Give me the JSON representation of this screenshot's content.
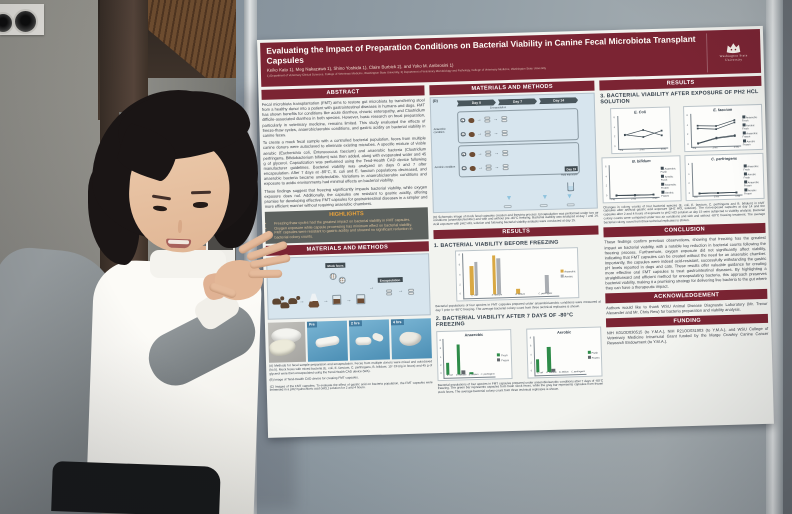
{
  "colors": {
    "poster_maroon": "#7b2433",
    "highlight_amber": "#e9a23b",
    "bar_anaerobic_yellow": "#d9a843",
    "bar_aerobic_gray": "#a9adb2",
    "bar_fresh_green": "#2e8c49",
    "bar_frozen_gray": "#62676b",
    "board_gray": "#929ea6"
  },
  "icons": {
    "right_arrow": "→",
    "down_arrow": "▼",
    "wsu_cougar": "cougar-head-logo"
  },
  "poster": {
    "title": "Evaluating the Impact of Preparation Conditions on Bacterial Viability in Canine Fecal Microbiota Transplant Capsules",
    "authors": "Keiko Kato 1), Meg Nakazawa 1), Shino Yoshida 1), Claire Burbick 2), and Yoko M. Ambrosini 1)",
    "affiliations": "1) Department of Veterinary Clinical Sciences, College of Veterinary Medicine, Washington State University, 2) Department of Veterinary Microbiology and Pathology, College of Veterinary Medicine, Washington State University",
    "logo": {
      "line1": "Washington State",
      "line2": "University"
    },
    "sections": {
      "abstract": {
        "title": "ABSTRACT",
        "paragraphs": [
          "Fecal microbiota transplantation (FMT) aims to restore gut microbiota by transferring stool from a healthy donor into a patient with gastrointestinal diseases in humans and dogs. FMT has shown benefits for conditions like acute diarrhea, chronic enteropathy, and Clostridium difficile-associated diarrhea in both species. However, basic research on fecal preparation, particularly in veterinary medicine, remains limited. This study evaluated the effects of freeze-thaw cycles, anaerobic/aerobic conditions, and gastric acidity on bacterial viability in canine feces.",
          "To create a mock fecal sample with a controlled bacterial population, feces from multiple canine donors were autoclaved to eliminate existing microbes. A specific mixture of viable aerobic (Escherichia coli, Enterococcus faecium) and anaerobic bacteria (Clostridium perfringens, Bifidobacterium bifidum) was then added, along with evaporated water and 45 g of glycerol. Capsulization was performed using the Tend-Health CAD device following manufacturer guidelines. Bacterial viability was analyzed on days 0 and 7 after encapsulation. After 7 days at -80°C, E. coli and E. faecium populations decreased, and anaerobic bacteria became undetectable. Variations in anaerobic/aerobic conditions and exposure to acidic environments had minimal effects on bacterial viability.",
          "These findings suggest that freezing significantly impacts bacterial viability, while oxygen exposure does not. Additionally, the capsules are resistant to gastric acidity, offering promise for developing effective FMT capsules for gastrointestinal diseases in a simpler and more efficient manner without requiring anaerobic chambers."
        ]
      },
      "highlights": {
        "title": "HIGHLIGHTS",
        "bullets": [
          "Freezing thaw cycles had the greatest impact on bacterial viability in FMT capsules.",
          "Oxygen exposure while capsule processing has minimum effect on bacterial viability.",
          "FMT capsules were resistant to gastric acidity and showed no significant reduction in bacterial colony counts."
        ]
      },
      "methods": {
        "title": "MATERIALS AND METHODS",
        "diagram_labels": {
          "mock_feces": "Mock feces",
          "encapsulation": "Encapsulation"
        },
        "photo_labels": [
          "Pre",
          "2 hrs",
          "4 hrs"
        ],
        "captions": [
          "(A) Methods for fecal sample preparation and encapsulation. Feces from multiple donors were mixed and autoclaved (N=5). Mock feces with mixed bacteria (E. coli, E. faecium, C. perfringens, B. bifidum; 10⁷ CFU/g in feces) and 45 g of glycerol were then encapsulated using the Tend-Health CAD device (WA).",
          "(B) Image of Tend-Health CAD device for creating FMT capsules.",
          "(C) Images of the FMT capsules. To evaluate the effect of gastric acid on bacteria population, the FMT capsules were immersed in a pH2 hydrochloric acid (HCL) solution for 2 and 4 hours."
        ],
        "timeline": {
          "tag": "(D)",
          "days": [
            "Day 0",
            "Day 7",
            "Day 14"
          ],
          "encapsulation": "Encapsulation",
          "anaerobic": "Anaerobic condition",
          "aerobic": "Aerobic condition",
          "row_numbers": [
            "1",
            "2",
            "3",
            "4"
          ],
          "day15": "Day 15",
          "acid": "Acid exposure",
          "caption": "(D) Schematic image of mock fecal capsules creation and freezing process. Encapsulation was performed under two air conditions (anaerobic/aerobic) and with and without pre -80°C freezing. Bacterial viability was analyzed at day 7 and 14. Acid exposure with pH2 HCL solution and following bacterial viability analysis were conducted at day 15."
        }
      },
      "results": {
        "title": "RESULTS",
        "r1": {
          "heading": "1. BACTERIAL VIABILITY BEFORE FREEZING",
          "caption": "Bacterial populations of four species in FMT capsules prepared under anaerobic/aerobic conditions were measured at day 7 prior to -80°C freezing. The average bacterial colony count from three technical replicates is shown."
        },
        "r2": {
          "heading": "2. BACTERIAL VIABILITY AFTER 7 DAYS OF -80°C FREEZING",
          "caption": "Bacterial populations of four species in FMT capsules prepared under anaerobic/aerobic conditions after 7 days of -80°C freezing. The green bar represents capsules from fresh stock feces, while the gray bar represents capsules from frozen stock feces. The average bacterial colony count from three technical replicates is shown."
        },
        "r3": {
          "heading": "3. BACTERIAL VIABILITY AFTER EXPOSURE OF PH2 HCL SOLUTION",
          "caption": "Changes in colony counts of four bacterial species (E. coli, E. faecium, C. perfringens and B. bifidum) in FMT capsules after artificial gastric acid exposure (pH2 HCL solution). The non-exposed capsules at day 14 and the capsules after 2 and 4 hours of exposure to pH2 HCl solution at day 15 were subjected to viability analysis. Bacterial colony counts were compared under two air conditions and with and without -80°C freezing treatment. The average bacterial colony count from three technical replicates is shown."
        }
      },
      "conclusion": {
        "title": "CONCLUSION",
        "text": "These findings confirm previous observations, showing that freezing has the greatest impact on bacterial viability, with a notable log reduction in bacterial counts following the freezing process. Furthermore, oxygen exposure did not significantly affect viability, indicating that FMT capsules can be created without the need for an anaerobic chamber. Importantly, the capsules were indeed acid-resistant, successfully withstanding the gastric pH levels reported in dogs and cats. These results offer valuable guidance for creating more effective oral FMT capsules to treat gastrointestinal diseases. By highlighting a straightforward and efficient method for encapsulating bacteria, this approach preserves bacterial viability, making it a promising strategy for delivering live bacteria to the gut where they can have a therapeutic impact."
      },
      "acknowledgement": {
        "title": "ACKNOWLEDGEMENT",
        "text": "Authors would like to thank WSU Animal Disease Diagnostic Laboratory (Mr. Trevor Alexander and Mr. Chris Rew) for bacteria preparation and viability analysis."
      },
      "funding": {
        "title": "FUNDING",
        "text": "NIH K01OD030515 (to Y.M.A.), NIH R21OD031903 (to Y.M.A.), and WSU College of Veterinary Medicine Intramural Grant funded by the Marge Crowley Canine Cancer Research Endowment (to Y.M.A.)."
      }
    }
  },
  "chart_data": [
    {
      "id": "viability-before-freezing",
      "type": "bar",
      "categories": [
        "E. coli",
        "E. faecium",
        "B. bifidum",
        "C. perfringens"
      ],
      "series": [
        {
          "name": "Anaerobic",
          "color": "#d9a843",
          "values": [
            5.6,
            7.6,
            1.0,
            0
          ]
        },
        {
          "name": "Aerobic",
          "color": "#a9adb2",
          "values": [
            6.3,
            6.9,
            0,
            3.4
          ]
        }
      ],
      "ylabel": "Log CFU/g",
      "ylim": [
        0,
        8
      ],
      "yticks": [
        0,
        2,
        4,
        6,
        8
      ],
      "legend": true
    },
    {
      "id": "after-freezing-anaerobic",
      "type": "bar",
      "title": "Anaerobic",
      "categories": [
        "E. coli",
        "E. faecium",
        "B. bifidum",
        "C. perfringens"
      ],
      "series": [
        {
          "name": "Fresh",
          "color": "#2e8c49",
          "values": [
            2.6,
            6.6,
            0.3,
            0
          ]
        },
        {
          "name": "Frozen",
          "color": "#62676b",
          "values": [
            0,
            0.9,
            0,
            0
          ]
        }
      ],
      "ylabel": "Log CFU/g",
      "ylim": [
        0,
        8
      ],
      "yticks": [
        0,
        2,
        4,
        6,
        8
      ],
      "legend": true
    },
    {
      "id": "after-freezing-aerobic",
      "type": "bar",
      "title": "Aerobic",
      "categories": [
        "E. coli",
        "E. faecium",
        "B. bifidum",
        "C. perfringens"
      ],
      "series": [
        {
          "name": "Fresh",
          "color": "#2e8c49",
          "values": [
            2.9,
            5.6,
            0,
            0
          ]
        },
        {
          "name": "Frozen",
          "color": "#62676b",
          "values": [
            0,
            0.6,
            0,
            0
          ]
        }
      ],
      "ylabel": "Log CFU/g",
      "ylim": [
        0,
        8
      ],
      "yticks": [
        0,
        2,
        4,
        6,
        8
      ],
      "legend": true
    },
    {
      "id": "acid-e-coli",
      "type": "line",
      "title": "E. Coli",
      "x": [
        "Pre",
        "2 hrs",
        "4 hrs"
      ],
      "series": [
        {
          "name": "Anaerobic",
          "values": [
            3.0,
            4.2,
            2.7
          ]
        },
        {
          "name": "Aerobic",
          "values": [
            3.1,
            2.4,
            3.9
          ]
        }
      ],
      "ylim": [
        0,
        7
      ],
      "yticks": [
        0,
        2,
        4,
        6
      ],
      "legend": false
    },
    {
      "id": "acid-e-faecium",
      "type": "line",
      "title": "E. faecium",
      "x": [
        "Pre",
        "2 hrs",
        "4 hrs"
      ],
      "series": [
        {
          "name": "Anaerobic Fresh",
          "values": [
            4.9,
            4.7,
            6.1
          ]
        },
        {
          "name": "Aerobic Fresh",
          "values": [
            4.2,
            3.9,
            5.5
          ]
        },
        {
          "name": "Anaerobic Frozen",
          "values": [
            0.4,
            1.7,
            2.2
          ]
        },
        {
          "name": "Aerobic Frozen",
          "values": [
            0.3,
            1.5,
            2.0
          ]
        }
      ],
      "ylim": [
        0,
        7
      ],
      "yticks": [
        0,
        2,
        4,
        6
      ],
      "legend": true
    },
    {
      "id": "acid-b-bifidum",
      "type": "line",
      "title": "B. bifidum",
      "x": [
        "Pre",
        "2 hrs",
        "4 hrs"
      ],
      "series": [
        {
          "name": "Anaerobic Fresh",
          "values": [
            0.2,
            0.15,
            0.1
          ]
        },
        {
          "name": "Aerobic Fresh",
          "values": [
            0.1,
            0.1,
            0.1
          ]
        },
        {
          "name": "Anaerobic Frozen",
          "values": [
            0.15,
            0.1,
            0.1
          ]
        },
        {
          "name": "Aerobic Frozen",
          "values": [
            0.1,
            0.05,
            0.1
          ]
        }
      ],
      "ylim": [
        0,
        7
      ],
      "yticks": [
        0,
        2,
        4,
        6
      ],
      "legend": true
    },
    {
      "id": "acid-c-perfringens",
      "type": "line",
      "title": "C. perfringens",
      "x": [
        "Pre",
        "2 hrs",
        "4 hrs"
      ],
      "series": [
        {
          "name": "Anaerobic Fresh",
          "values": [
            0.1,
            0.1,
            0.1
          ]
        },
        {
          "name": "Aerobic Fresh",
          "values": [
            0.1,
            0.05,
            0.1
          ]
        },
        {
          "name": "Anaerobic Frozen",
          "values": [
            0.05,
            0.1,
            0.05
          ]
        },
        {
          "name": "Aerobic Frozen",
          "values": [
            0.1,
            0.1,
            0.05
          ]
        }
      ],
      "ylim": [
        0,
        7
      ],
      "yticks": [
        0,
        2,
        4,
        6
      ],
      "legend": true
    }
  ]
}
